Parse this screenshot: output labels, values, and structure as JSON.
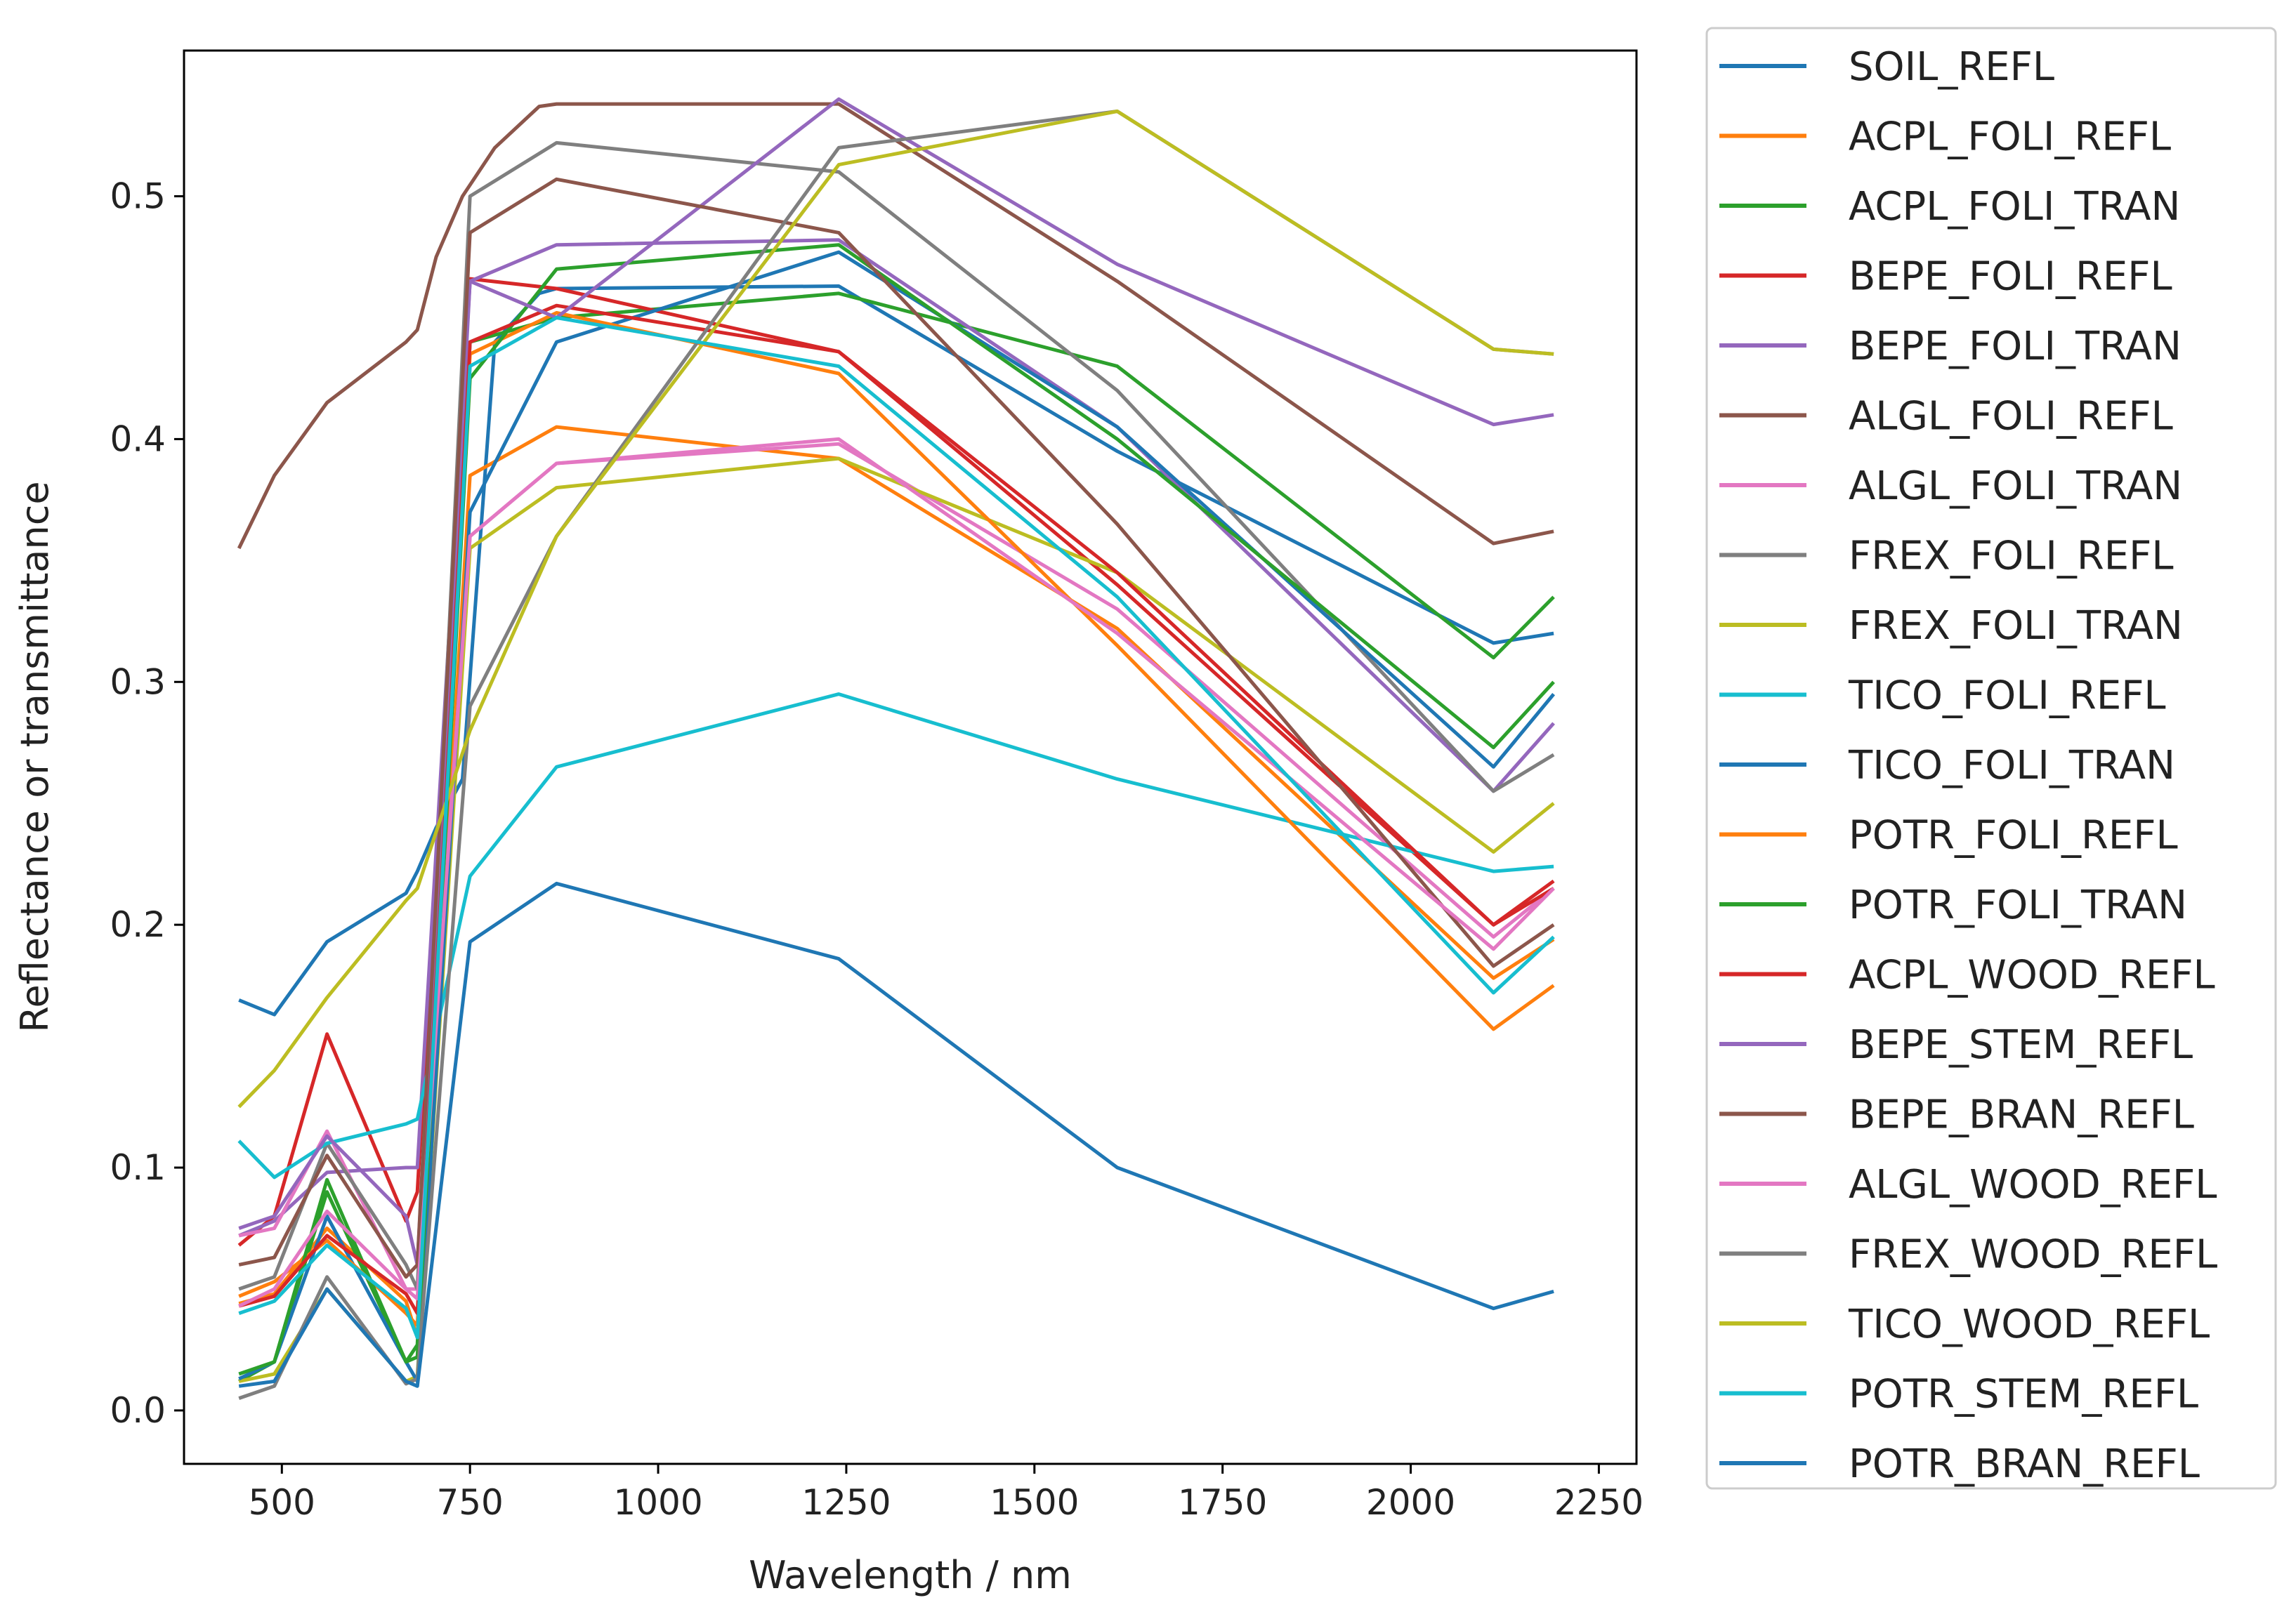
{
  "chart_data": {
    "type": "line",
    "title": "",
    "xlabel": "Wavelength / nm",
    "ylabel": "Reflectance or transmittance",
    "xlim": [
      370,
      2300
    ],
    "ylim": [
      -0.022,
      0.56
    ],
    "xticks": [
      500,
      750,
      1000,
      1250,
      1500,
      1750,
      2000,
      2250
    ],
    "xtick_labels": [
      "500",
      "750",
      "1000",
      "1250",
      "1500",
      "1750",
      "2000",
      "2250"
    ],
    "yticks": [
      0.0,
      0.1,
      0.2,
      0.3,
      0.4,
      0.5
    ],
    "ytick_labels": [
      "0.0",
      "0.1",
      "0.2",
      "0.3",
      "0.4",
      "0.5"
    ],
    "grid": false,
    "legend_position": "outside-right",
    "series": [
      {
        "name": "SOIL_REFL",
        "color": "#1f77b4",
        "x": [
          443,
          490,
          560,
          665,
          680,
          705,
          740,
          783,
          842,
          865,
          1240,
          1610,
          2110,
          2190
        ],
        "y": [
          0.169,
          0.163,
          0.193,
          0.213,
          0.222,
          0.24,
          0.26,
          0.44,
          0.46,
          0.462,
          0.463,
          0.395,
          0.316,
          0.32
        ]
      },
      {
        "name": "ACPL_FOLI_REFL",
        "color": "#ff7f0e",
        "x": [
          443,
          490,
          560,
          665,
          680,
          750,
          865,
          1240,
          1610,
          2110,
          2190
        ],
        "y": [
          0.044,
          0.048,
          0.075,
          0.045,
          0.03,
          0.385,
          0.405,
          0.392,
          0.322,
          0.178,
          0.194
        ]
      },
      {
        "name": "ACPL_FOLI_TRAN",
        "color": "#2ca02c",
        "x": [
          443,
          490,
          560,
          665,
          680,
          750,
          865,
          1240,
          1610,
          2110,
          2190
        ],
        "y": [
          0.012,
          0.02,
          0.09,
          0.02,
          0.027,
          0.44,
          0.45,
          0.46,
          0.43,
          0.31,
          0.335
        ]
      },
      {
        "name": "BEPE_FOLI_REFL",
        "color": "#d62728",
        "x": [
          443,
          490,
          560,
          665,
          680,
          750,
          865,
          1240,
          1610,
          2110,
          2190
        ],
        "y": [
          0.068,
          0.08,
          0.155,
          0.078,
          0.09,
          0.466,
          0.462,
          0.436,
          0.34,
          0.2,
          0.218
        ]
      },
      {
        "name": "BEPE_FOLI_TRAN",
        "color": "#9467bd",
        "x": [
          443,
          490,
          560,
          665,
          680,
          750,
          865,
          1240,
          1610,
          2110,
          2190
        ],
        "y": [
          0.072,
          0.078,
          0.098,
          0.1,
          0.1,
          0.465,
          0.48,
          0.482,
          0.405,
          0.255,
          0.283
        ]
      },
      {
        "name": "ALGL_FOLI_REFL",
        "color": "#8c564b",
        "x": [
          443,
          490,
          560,
          665,
          680,
          705,
          740,
          783,
          842,
          865,
          1240,
          1610,
          2110,
          2190
        ],
        "y": [
          0.355,
          0.385,
          0.415,
          0.44,
          0.445,
          0.475,
          0.5,
          0.52,
          0.537,
          0.538,
          0.538,
          0.465,
          0.357,
          0.362
        ]
      },
      {
        "name": "ALGL_FOLI_TRAN",
        "color": "#e377c2",
        "x": [
          443,
          490,
          560,
          665,
          680,
          750,
          865,
          1240,
          1610,
          2110,
          2190
        ],
        "y": [
          0.072,
          0.075,
          0.115,
          0.05,
          0.05,
          0.36,
          0.39,
          0.398,
          0.33,
          0.195,
          0.215
        ]
      },
      {
        "name": "FREX_FOLI_REFL",
        "color": "#7f7f7f",
        "x": [
          443,
          490,
          560,
          665,
          680,
          750,
          865,
          1240,
          1610,
          2110,
          2190
        ],
        "y": [
          0.05,
          0.055,
          0.11,
          0.06,
          0.05,
          0.5,
          0.522,
          0.51,
          0.42,
          0.255,
          0.27
        ]
      },
      {
        "name": "FREX_FOLI_TRAN",
        "color": "#bcbd22",
        "x": [
          443,
          490,
          560,
          665,
          680,
          750,
          865,
          1240,
          1610,
          2110,
          2190
        ],
        "y": [
          0.012,
          0.015,
          0.05,
          0.012,
          0.014,
          0.355,
          0.38,
          0.392,
          0.345,
          0.23,
          0.25
        ]
      },
      {
        "name": "TICO_FOLI_REFL",
        "color": "#17becf",
        "x": [
          443,
          490,
          560,
          665,
          680,
          750,
          865,
          1240,
          1610,
          2110,
          2190
        ],
        "y": [
          0.111,
          0.096,
          0.11,
          0.118,
          0.12,
          0.22,
          0.265,
          0.295,
          0.26,
          0.222,
          0.224
        ]
      },
      {
        "name": "TICO_FOLI_TRAN",
        "color": "#1f77b4",
        "x": [
          443,
          490,
          560,
          665,
          680,
          750,
          865,
          1240,
          1610,
          2110,
          2190
        ],
        "y": [
          0.013,
          0.02,
          0.08,
          0.02,
          0.012,
          0.37,
          0.44,
          0.477,
          0.405,
          0.265,
          0.295
        ]
      },
      {
        "name": "POTR_FOLI_REFL",
        "color": "#ff7f0e",
        "x": [
          443,
          490,
          560,
          665,
          680,
          750,
          865,
          1240,
          1610,
          2110,
          2190
        ],
        "y": [
          0.047,
          0.053,
          0.07,
          0.04,
          0.035,
          0.435,
          0.452,
          0.427,
          0.315,
          0.157,
          0.175
        ]
      },
      {
        "name": "POTR_FOLI_TRAN",
        "color": "#2ca02c",
        "x": [
          443,
          490,
          560,
          665,
          680,
          750,
          865,
          1240,
          1610,
          2110,
          2190
        ],
        "y": [
          0.015,
          0.02,
          0.095,
          0.02,
          0.022,
          0.425,
          0.47,
          0.48,
          0.4,
          0.273,
          0.3
        ]
      },
      {
        "name": "ACPL_WOOD_REFL",
        "color": "#d62728",
        "x": [
          443,
          490,
          560,
          665,
          680,
          750,
          865,
          1240,
          1610,
          2110,
          2190
        ],
        "y": [
          0.043,
          0.047,
          0.072,
          0.048,
          0.04,
          0.44,
          0.455,
          0.436,
          0.345,
          0.2,
          0.215
        ]
      },
      {
        "name": "BEPE_STEM_REFL",
        "color": "#9467bd",
        "x": [
          443,
          490,
          560,
          665,
          680,
          750,
          865,
          1240,
          1610,
          2110,
          2190
        ],
        "y": [
          0.075,
          0.08,
          0.113,
          0.08,
          0.06,
          0.465,
          0.45,
          0.54,
          0.472,
          0.406,
          0.41
        ]
      },
      {
        "name": "BEPE_BRAN_REFL",
        "color": "#8c564b",
        "x": [
          443,
          490,
          560,
          665,
          680,
          750,
          865,
          1240,
          1610,
          2110,
          2190
        ],
        "y": [
          0.06,
          0.063,
          0.105,
          0.055,
          0.06,
          0.485,
          0.507,
          0.485,
          0.365,
          0.183,
          0.2
        ]
      },
      {
        "name": "ALGL_WOOD_REFL",
        "color": "#e377c2",
        "x": [
          443,
          490,
          560,
          665,
          680,
          750,
          865,
          1240,
          1610,
          2110,
          2190
        ],
        "y": [
          0.043,
          0.05,
          0.082,
          0.05,
          0.046,
          0.36,
          0.39,
          0.4,
          0.32,
          0.19,
          0.215
        ]
      },
      {
        "name": "FREX_WOOD_REFL",
        "color": "#7f7f7f",
        "x": [
          443,
          490,
          560,
          665,
          680,
          750,
          865,
          1240,
          1610,
          2110,
          2190
        ],
        "y": [
          0.005,
          0.01,
          0.055,
          0.011,
          0.013,
          0.29,
          0.36,
          0.52,
          0.535,
          0.437,
          0.435
        ]
      },
      {
        "name": "TICO_WOOD_REFL",
        "color": "#bcbd22",
        "x": [
          443,
          490,
          560,
          665,
          680,
          750,
          865,
          1240,
          1610,
          2110,
          2190
        ],
        "y": [
          0.125,
          0.14,
          0.17,
          0.21,
          0.215,
          0.28,
          0.36,
          0.513,
          0.535,
          0.437,
          0.435
        ]
      },
      {
        "name": "POTR_STEM_REFL",
        "color": "#17becf",
        "x": [
          443,
          490,
          560,
          665,
          680,
          750,
          865,
          1240,
          1610,
          2110,
          2190
        ],
        "y": [
          0.04,
          0.045,
          0.068,
          0.042,
          0.03,
          0.43,
          0.45,
          0.43,
          0.335,
          0.172,
          0.195
        ]
      },
      {
        "name": "POTR_BRAN_REFL",
        "color": "#1f77b4",
        "x": [
          443,
          490,
          560,
          665,
          680,
          750,
          865,
          1240,
          1610,
          2110,
          2190
        ],
        "y": [
          0.01,
          0.012,
          0.05,
          0.012,
          0.01,
          0.193,
          0.217,
          0.186,
          0.1,
          0.042,
          0.049
        ]
      }
    ]
  }
}
